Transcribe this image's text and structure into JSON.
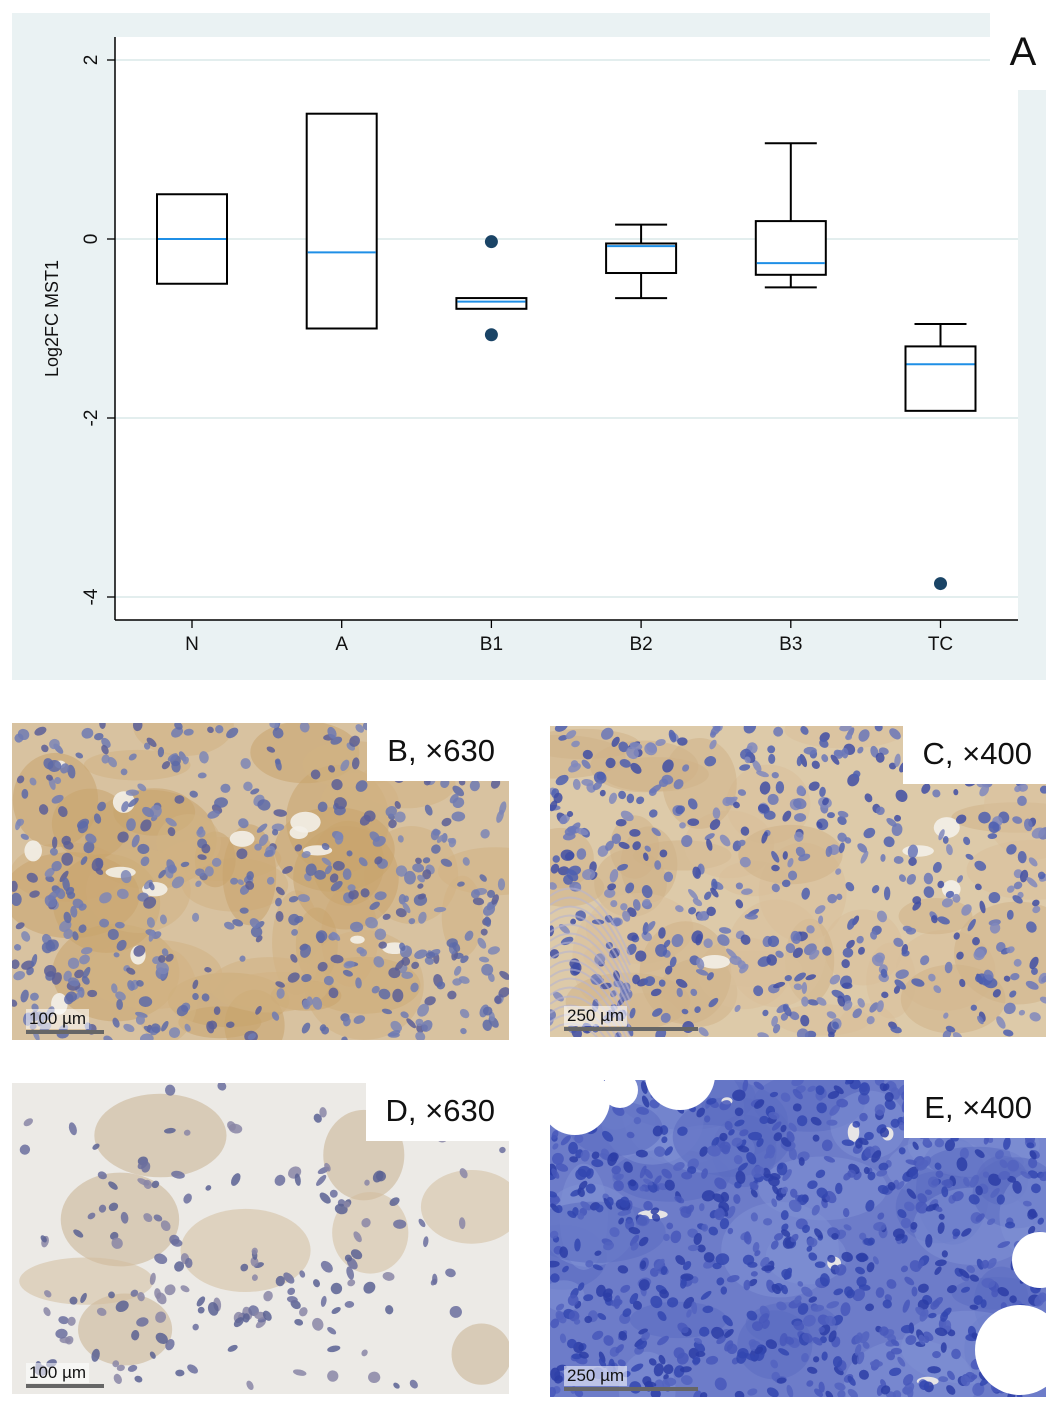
{
  "chart_data": {
    "type": "boxplot",
    "panel_label": "A",
    "ylabel": "Log2FC MST1",
    "ylim": [
      -4.3,
      2.3
    ],
    "yticks": [
      2,
      0,
      -2,
      -4
    ],
    "grid": true,
    "categories": [
      "N",
      "A",
      "B1",
      "B2",
      "B3",
      "TC"
    ],
    "boxes": [
      {
        "group": "N",
        "q1": -0.5,
        "median": 0.0,
        "q3": 0.5,
        "whisker_low": -0.5,
        "whisker_high": 0.5,
        "outliers": []
      },
      {
        "group": "A",
        "q1": -1.0,
        "median": -0.15,
        "q3": 1.4,
        "whisker_low": -1.0,
        "whisker_high": 1.4,
        "outliers": []
      },
      {
        "group": "B1",
        "q1": -0.78,
        "median": -0.7,
        "q3": -0.66,
        "whisker_low": -0.78,
        "whisker_high": -0.66,
        "outliers": [
          -0.03,
          -1.07
        ]
      },
      {
        "group": "B2",
        "q1": -0.38,
        "median": -0.08,
        "q3": -0.05,
        "whisker_low": -0.66,
        "whisker_high": 0.16,
        "outliers": []
      },
      {
        "group": "B3",
        "q1": -0.4,
        "median": -0.27,
        "q3": 0.2,
        "whisker_low": -0.54,
        "whisker_high": 1.07,
        "outliers": []
      },
      {
        "group": "TC",
        "q1": -1.92,
        "median": -1.4,
        "q3": -1.2,
        "whisker_low": -1.92,
        "whisker_high": -0.95,
        "outliers": [
          -3.85
        ]
      }
    ],
    "colors": {
      "background": "#eaf2f3",
      "plot": "#ffffff",
      "grid": "#e3eeee",
      "box": "#000000",
      "median": "#1f8fe6",
      "outlier": "#1a4466"
    }
  },
  "micrographs": [
    {
      "label": "B, ×630",
      "scale": "100 µm",
      "stain": "brown-moderate"
    },
    {
      "label": "C, ×400",
      "scale": "250 µm",
      "stain": "brown-light"
    },
    {
      "label": "D, ×630",
      "scale": "100 µm",
      "stain": "sparse-clusters"
    },
    {
      "label": "E, ×400",
      "scale": "250 µm",
      "stain": "blue-negative"
    }
  ]
}
